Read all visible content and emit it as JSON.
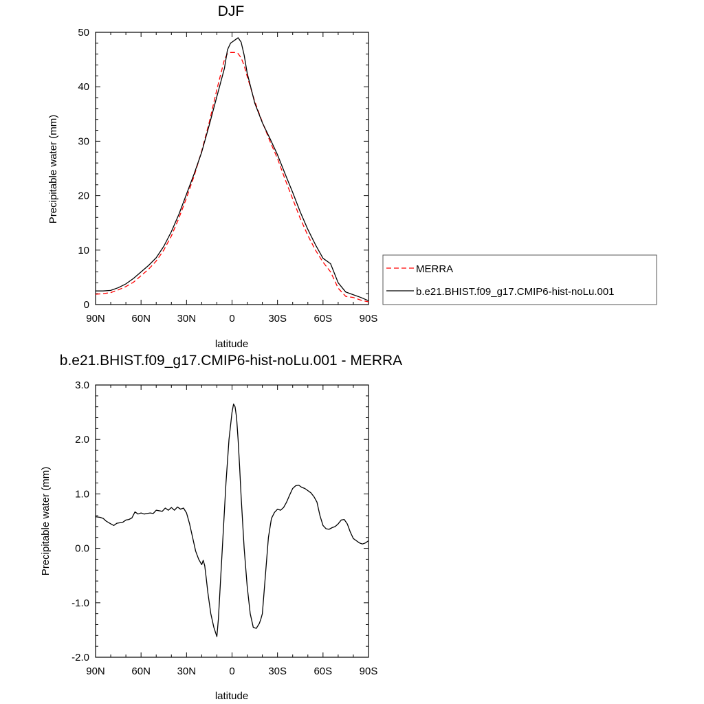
{
  "chart_data": [
    {
      "type": "line",
      "title": "DJF",
      "xlabel": "latitude",
      "ylabel": "Precipitable water (mm)",
      "xlim": [
        -90,
        90
      ],
      "ylim": [
        0,
        50
      ],
      "x_tick_values": [
        -90,
        -60,
        -30,
        0,
        30,
        60,
        90
      ],
      "x_tick_labels": [
        "90N",
        "60N",
        "30N",
        "0",
        "30S",
        "60S",
        "90S"
      ],
      "y_tick_values": [
        0,
        10,
        20,
        30,
        40,
        50
      ],
      "y_tick_labels": [
        "0",
        "10",
        "20",
        "30",
        "40",
        "50"
      ],
      "grid": false,
      "legend_position": "right",
      "series": [
        {
          "name": "MERRA",
          "color": "#ff0000",
          "dash": "dashed",
          "x": [
            -90,
            -85,
            -80,
            -75,
            -70,
            -65,
            -60,
            -55,
            -50,
            -45,
            -40,
            -35,
            -30,
            -25,
            -20,
            -15,
            -10,
            -5,
            -3,
            -1,
            0,
            2,
            4,
            6,
            8,
            10,
            15,
            20,
            25,
            30,
            35,
            40,
            45,
            50,
            55,
            60,
            65,
            70,
            75,
            80,
            85,
            90
          ],
          "y": [
            1.9,
            2.0,
            2.2,
            2.7,
            3.3,
            4.1,
            5.3,
            6.5,
            8.0,
            10.0,
            12.6,
            15.9,
            19.6,
            23.6,
            28.2,
            33.5,
            39.5,
            45.0,
            46.1,
            46.3,
            46.3,
            46.3,
            46.1,
            45.3,
            43.9,
            41.9,
            37.3,
            33.5,
            30.0,
            26.8,
            23.0,
            19.4,
            15.8,
            12.7,
            10.0,
            7.8,
            6.0,
            3.0,
            1.5,
            1.3,
            0.8,
            0.5
          ]
        },
        {
          "name": "b.e21.BHIST.f09_g17.CMIP6-hist-noLu.001",
          "color": "#000000",
          "dash": "solid",
          "x": [
            -90,
            -85,
            -80,
            -75,
            -70,
            -65,
            -60,
            -55,
            -50,
            -45,
            -40,
            -35,
            -30,
            -25,
            -20,
            -15,
            -10,
            -5,
            -3,
            -1,
            0,
            2,
            4,
            6,
            8,
            10,
            15,
            20,
            25,
            30,
            35,
            40,
            45,
            50,
            55,
            60,
            65,
            70,
            75,
            80,
            85,
            90
          ],
          "y": [
            2.5,
            2.5,
            2.6,
            3.1,
            3.8,
            4.8,
            6.0,
            7.2,
            8.6,
            10.7,
            13.4,
            16.6,
            20.3,
            24.0,
            28.0,
            33.0,
            38.2,
            43.4,
            46.8,
            48.0,
            48.2,
            48.6,
            49.0,
            48.2,
            45.8,
            42.5,
            37.0,
            33.4,
            30.5,
            27.5,
            24.0,
            20.6,
            17.0,
            13.8,
            11.0,
            8.5,
            7.5,
            4.0,
            2.3,
            1.8,
            1.3,
            0.7
          ]
        }
      ]
    },
    {
      "type": "line",
      "title": "b.e21.BHIST.f09_g17.CMIP6-hist-noLu.001 - MERRA",
      "xlabel": "latitude",
      "ylabel": "Precipitable water (mm)",
      "xlim": [
        -90,
        90
      ],
      "ylim": [
        -2.0,
        3.0
      ],
      "x_tick_values": [
        -90,
        -60,
        -30,
        0,
        30,
        60,
        90
      ],
      "x_tick_labels": [
        "90N",
        "60N",
        "30N",
        "0",
        "30S",
        "60S",
        "90S"
      ],
      "y_tick_values": [
        -2.0,
        -1.0,
        0.0,
        1.0,
        2.0,
        3.0
      ],
      "y_tick_labels": [
        "-2.0",
        "-1.0",
        "0.0",
        "1.0",
        "2.0",
        "3.0"
      ],
      "grid": false,
      "series": [
        {
          "color": "#000000",
          "dash": "solid",
          "x": [
            -90,
            -87,
            -85,
            -83,
            -80,
            -78,
            -76,
            -74,
            -72,
            -70,
            -68,
            -66,
            -64,
            -62,
            -60,
            -58,
            -56,
            -54,
            -52,
            -50,
            -48,
            -46,
            -44,
            -42,
            -40,
            -38,
            -36,
            -34,
            -32,
            -30,
            -28,
            -26,
            -24,
            -22,
            -20,
            -19,
            -18,
            -17,
            -16,
            -15,
            -14,
            -12,
            -10,
            -9,
            -8,
            -6,
            -4,
            -2,
            0,
            1,
            2,
            3,
            4,
            5,
            6,
            8,
            10,
            12,
            14,
            16,
            18,
            19,
            20,
            22,
            24,
            26,
            28,
            30,
            32,
            34,
            36,
            38,
            40,
            42,
            44,
            46,
            48,
            50,
            52,
            54,
            56,
            58,
            60,
            62,
            64,
            66,
            68,
            70,
            72,
            74,
            76,
            78,
            80,
            82,
            84,
            86,
            88,
            90
          ],
          "y": [
            0.58,
            0.57,
            0.55,
            0.5,
            0.45,
            0.42,
            0.46,
            0.47,
            0.48,
            0.52,
            0.53,
            0.56,
            0.67,
            0.63,
            0.65,
            0.63,
            0.64,
            0.65,
            0.64,
            0.7,
            0.69,
            0.68,
            0.74,
            0.7,
            0.75,
            0.7,
            0.76,
            0.72,
            0.74,
            0.65,
            0.45,
            0.2,
            -0.05,
            -0.2,
            -0.3,
            -0.22,
            -0.32,
            -0.55,
            -0.8,
            -1.0,
            -1.2,
            -1.45,
            -1.62,
            -1.3,
            -0.8,
            0.2,
            1.2,
            2.0,
            2.5,
            2.65,
            2.6,
            2.4,
            2.0,
            1.5,
            0.95,
            0.0,
            -0.7,
            -1.2,
            -1.45,
            -1.47,
            -1.38,
            -1.3,
            -1.2,
            -0.5,
            0.2,
            0.55,
            0.66,
            0.72,
            0.7,
            0.75,
            0.85,
            0.98,
            1.1,
            1.15,
            1.16,
            1.12,
            1.1,
            1.06,
            1.02,
            0.95,
            0.85,
            0.6,
            0.42,
            0.36,
            0.35,
            0.38,
            0.4,
            0.45,
            0.52,
            0.53,
            0.45,
            0.3,
            0.18,
            0.14,
            0.1,
            0.08,
            0.1,
            0.14
          ]
        }
      ]
    }
  ]
}
